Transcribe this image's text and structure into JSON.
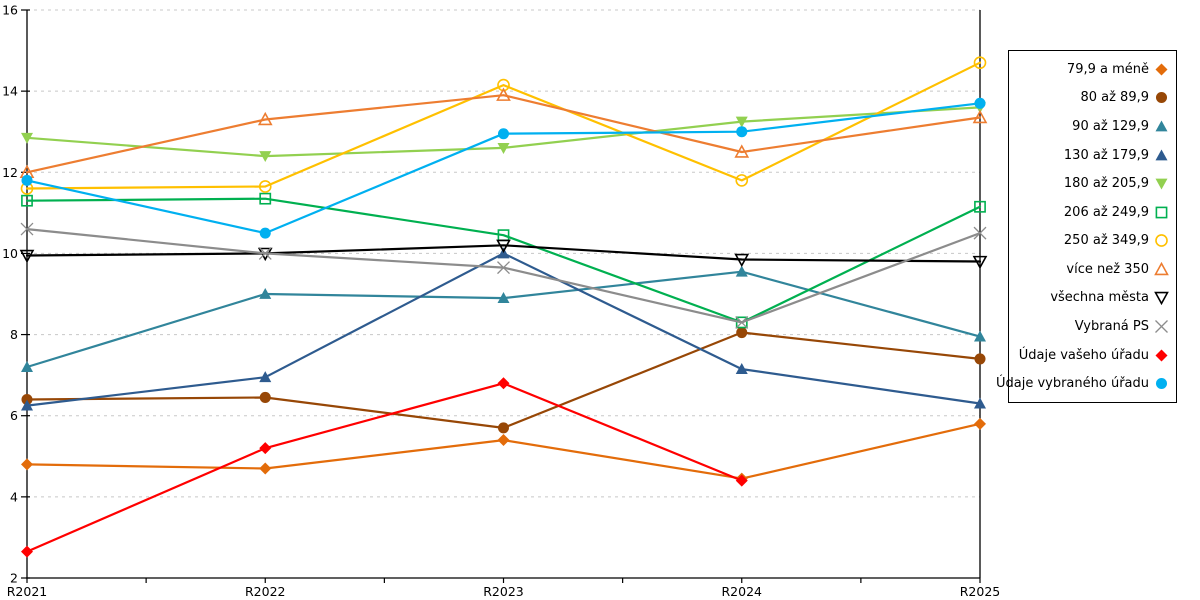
{
  "chart_data": {
    "type": "line",
    "title": "",
    "categories": [
      "R2021",
      "R2022",
      "R2023",
      "R2024",
      "R2025"
    ],
    "y_ticks": [
      2,
      4,
      6,
      8,
      10,
      12,
      14,
      16
    ],
    "ylim": [
      2,
      16
    ],
    "grid": "horizontal-dashed",
    "legend_position": "right",
    "series": [
      {
        "name": "79,9 a méně",
        "color": "#E36C0A",
        "marker": "diamond",
        "filled": true,
        "values": [
          4.8,
          4.7,
          5.4,
          4.45,
          5.8
        ]
      },
      {
        "name": "80 až 89,9",
        "color": "#974706",
        "marker": "circle",
        "filled": true,
        "values": [
          6.4,
          6.45,
          5.7,
          8.05,
          7.4
        ]
      },
      {
        "name": "90 až 129,9",
        "color": "#31859B",
        "marker": "triangle-up",
        "filled": true,
        "values": [
          7.2,
          9.0,
          8.9,
          9.55,
          7.95
        ]
      },
      {
        "name": "130 až 179,9",
        "color": "#2E5B8F",
        "marker": "triangle-up",
        "filled": true,
        "values": [
          6.25,
          6.95,
          10.0,
          7.15,
          6.3
        ]
      },
      {
        "name": "180 až 205,9",
        "color": "#92D050",
        "marker": "triangle-down",
        "filled": true,
        "values": [
          12.85,
          12.4,
          12.6,
          13.25,
          13.6
        ]
      },
      {
        "name": "206 až 249,9",
        "color": "#00B050",
        "marker": "square",
        "filled": false,
        "values": [
          11.3,
          11.35,
          10.45,
          8.3,
          11.15
        ]
      },
      {
        "name": "250 až 349,9",
        "color": "#FFC000",
        "marker": "circle",
        "filled": false,
        "values": [
          11.6,
          11.65,
          14.15,
          11.8,
          14.7
        ]
      },
      {
        "name": "více než 350",
        "color": "#ED7D31",
        "marker": "triangle-up",
        "filled": false,
        "values": [
          12.0,
          13.3,
          13.9,
          12.5,
          13.35
        ]
      },
      {
        "name": "všechna města",
        "color": "#000000",
        "marker": "triangle-down",
        "filled": false,
        "values": [
          9.95,
          10.0,
          10.2,
          9.85,
          9.8
        ]
      },
      {
        "name": "Vybraná PS",
        "color": "#8C8C8C",
        "marker": "x",
        "filled": false,
        "values": [
          10.6,
          10.0,
          9.65,
          8.3,
          10.5
        ]
      },
      {
        "name": "Údaje vašeho úřadu",
        "color": "#FF0000",
        "marker": "diamond",
        "filled": true,
        "values": [
          2.65,
          5.2,
          6.8,
          4.4,
          null
        ]
      },
      {
        "name": "Údaje vybraného úřadu",
        "color": "#00B0F0",
        "marker": "circle",
        "filled": true,
        "values": [
          11.8,
          10.5,
          12.95,
          13.0,
          13.7
        ]
      }
    ]
  },
  "colors": {
    "background": "#FFFFFF",
    "axis": "#000000",
    "gridline": "#C8C8C8",
    "tick_label": "#000000",
    "legend_border": "#000000"
  }
}
